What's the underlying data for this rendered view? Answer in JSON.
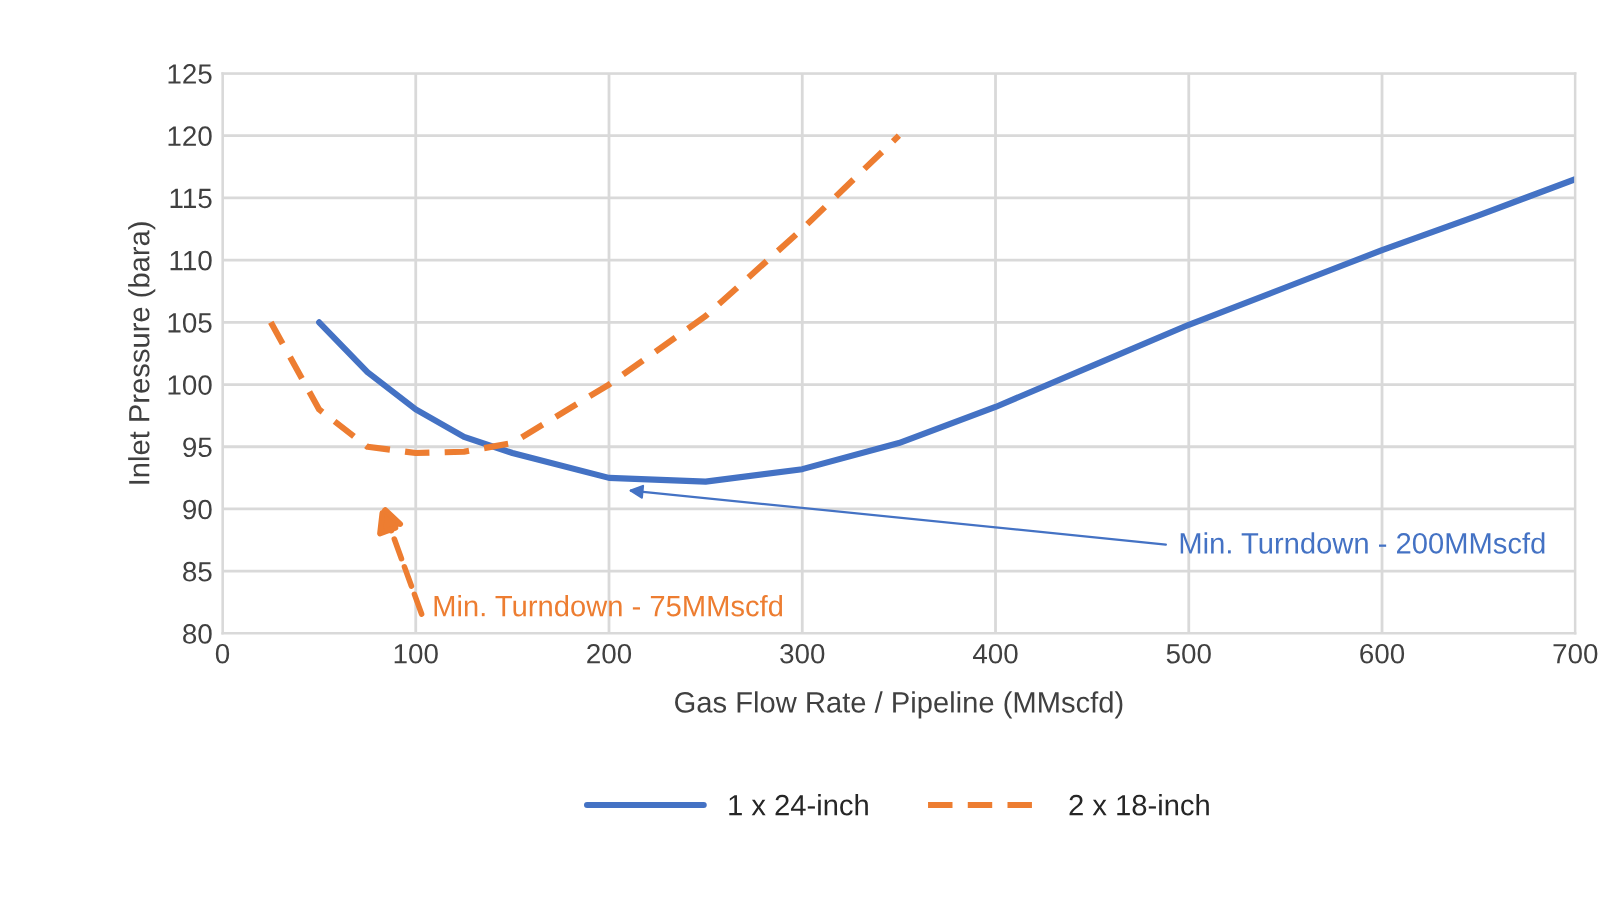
{
  "chart_data": {
    "type": "line",
    "xlabel": "Gas Flow Rate / Pipeline (MMscfd)",
    "ylabel": "Inlet Pressure (bara)",
    "series": [
      {
        "name": "1 x 24-inch",
        "color": "#4472c4",
        "line_style": "solid",
        "x": [
          50,
          75,
          100,
          125,
          150,
          200,
          250,
          300,
          350,
          400,
          450,
          500,
          550,
          600,
          650,
          700
        ],
        "values": [
          105,
          101,
          98,
          95.8,
          94.5,
          92.5,
          92.2,
          93.2,
          95.3,
          98.2,
          101.5,
          104.8,
          107.8,
          110.8,
          113.6,
          116.5
        ]
      },
      {
        "name": "2 x 18-inch",
        "color": "#ed7d31",
        "line_style": "dashed",
        "x": [
          25,
          50,
          75,
          100,
          125,
          150,
          200,
          250,
          300,
          350
        ],
        "values": [
          105,
          98,
          95,
          94.5,
          94.6,
          95.3,
          100,
          105.5,
          112.5,
          120
        ]
      }
    ],
    "xlim": [
      0,
      700
    ],
    "xticks": [
      0,
      100,
      200,
      300,
      400,
      500,
      600,
      700
    ],
    "ylim": [
      80,
      125
    ],
    "yticks": [
      80,
      85,
      90,
      95,
      100,
      105,
      110,
      115,
      120,
      125
    ],
    "grid": true,
    "legend": "bottom",
    "annotations": [
      {
        "text": "Min. Turndown - 200MMscfd",
        "x": 210,
        "y": 91.5
      },
      "Min. Turndown - 75MMscfd"
    ]
  }
}
